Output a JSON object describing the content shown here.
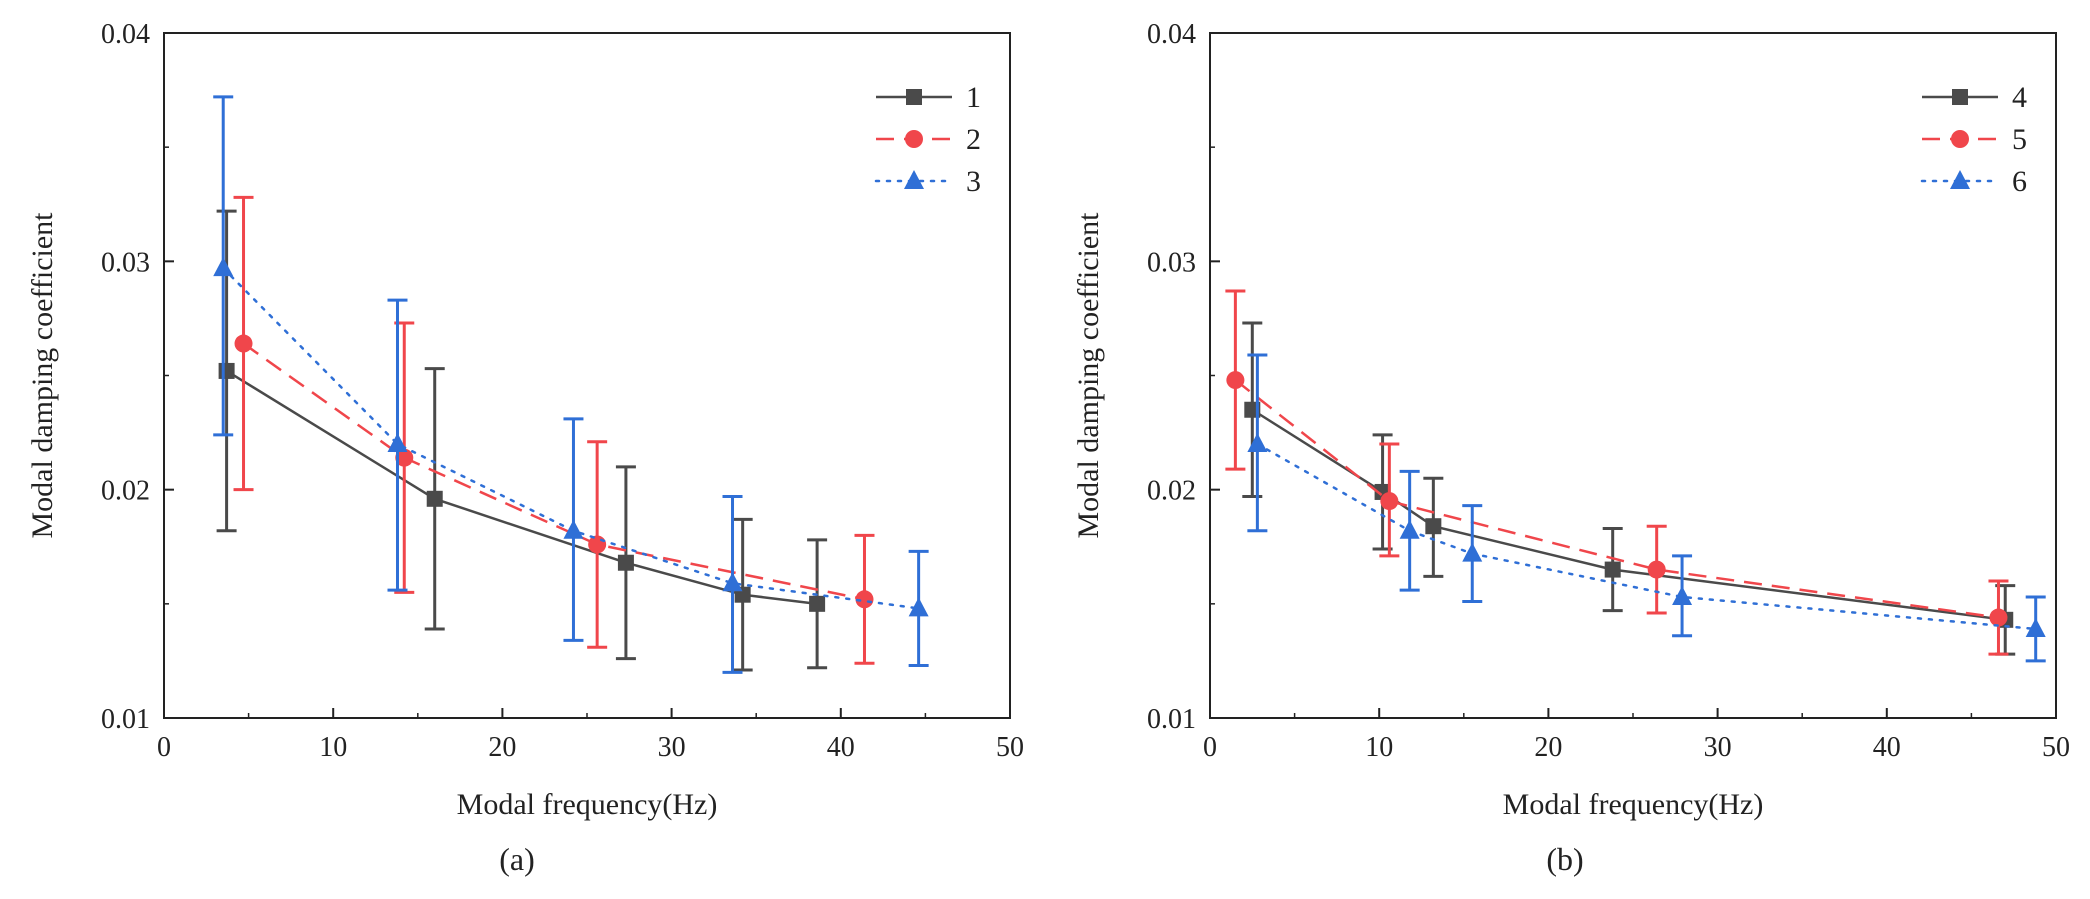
{
  "figure": {
    "panel_labels": [
      "(a)",
      "(b)"
    ]
  },
  "chart_data": [
    {
      "type": "line",
      "panel": "(a)",
      "xlabel": "Modal frequency(Hz)",
      "ylabel": "Modal damping coefficient",
      "xlim": [
        0,
        50
      ],
      "ylim": [
        0.01,
        0.04
      ],
      "xticks": [
        0,
        10,
        20,
        30,
        40,
        50
      ],
      "xtick_labels": [
        "0",
        "10",
        "20",
        "30",
        "40",
        "50"
      ],
      "yticks": [
        0.01,
        0.02,
        0.03,
        0.04
      ],
      "ytick_labels": [
        "0.01",
        "0.02",
        "0.03",
        "0.04"
      ],
      "legend_position": "top-right",
      "series": [
        {
          "name": "1",
          "color": "#4a4a4a",
          "dash": "solid",
          "marker": "square",
          "x": [
            3.7,
            16.0,
            27.3,
            34.2,
            38.6
          ],
          "y": [
            0.0252,
            0.0196,
            0.0168,
            0.0154,
            0.015
          ],
          "err_low": [
            0.0182,
            0.0139,
            0.0126,
            0.0121,
            0.0122
          ],
          "err_high": [
            0.0322,
            0.0253,
            0.021,
            0.0187,
            0.0178
          ]
        },
        {
          "name": "2",
          "color": "#f0464b",
          "dash": "dashed",
          "marker": "circle",
          "x": [
            4.7,
            14.2,
            25.6,
            41.4
          ],
          "y": [
            0.0264,
            0.0214,
            0.0176,
            0.0152
          ],
          "err_low": [
            0.02,
            0.0155,
            0.0131,
            0.0124
          ],
          "err_high": [
            0.0328,
            0.0273,
            0.0221,
            0.018
          ]
        },
        {
          "name": "3",
          "color": "#2f6fd6",
          "dash": "dotted",
          "marker": "triangle",
          "x": [
            3.5,
            13.8,
            24.2,
            33.6,
            44.6
          ],
          "y": [
            0.0297,
            0.022,
            0.0182,
            0.0159,
            0.0148
          ],
          "err_low": [
            0.0224,
            0.0156,
            0.0134,
            0.012,
            0.0123
          ],
          "err_high": [
            0.0372,
            0.0283,
            0.0231,
            0.0197,
            0.0173
          ]
        }
      ]
    },
    {
      "type": "line",
      "panel": "(b)",
      "xlabel": "Modal frequency(Hz)",
      "ylabel": "Modal damping coefficient",
      "xlim": [
        0,
        50
      ],
      "ylim": [
        0.01,
        0.04
      ],
      "xticks": [
        0,
        10,
        20,
        30,
        40,
        50
      ],
      "xtick_labels": [
        "0",
        "10",
        "20",
        "30",
        "40",
        "50"
      ],
      "yticks": [
        0.01,
        0.02,
        0.03,
        0.04
      ],
      "ytick_labels": [
        "0.01",
        "0.02",
        "0.03",
        "0.04"
      ],
      "legend_position": "top-right",
      "series": [
        {
          "name": "4",
          "color": "#4a4a4a",
          "dash": "solid",
          "marker": "square",
          "x": [
            2.5,
            10.2,
            13.2,
            23.8,
            47.0
          ],
          "y": [
            0.0235,
            0.0199,
            0.0184,
            0.0165,
            0.0143
          ],
          "err_low": [
            0.0197,
            0.0174,
            0.0162,
            0.0147,
            0.0128
          ],
          "err_high": [
            0.0273,
            0.0224,
            0.0205,
            0.0183,
            0.0158
          ]
        },
        {
          "name": "5",
          "color": "#f0464b",
          "dash": "dashed",
          "marker": "circle",
          "x": [
            1.5,
            10.6,
            26.4,
            46.6
          ],
          "y": [
            0.0248,
            0.0195,
            0.0165,
            0.0144
          ],
          "err_low": [
            0.0209,
            0.0171,
            0.0146,
            0.0128
          ],
          "err_high": [
            0.0287,
            0.022,
            0.0184,
            0.016
          ]
        },
        {
          "name": "6",
          "color": "#2f6fd6",
          "dash": "dotted",
          "marker": "triangle",
          "x": [
            2.8,
            11.8,
            15.5,
            27.9,
            48.8
          ],
          "y": [
            0.022,
            0.0182,
            0.0172,
            0.0153,
            0.0139
          ],
          "err_low": [
            0.0182,
            0.0156,
            0.0151,
            0.0136,
            0.0125
          ],
          "err_high": [
            0.0259,
            0.0208,
            0.0193,
            0.0171,
            0.0153
          ]
        }
      ]
    }
  ]
}
